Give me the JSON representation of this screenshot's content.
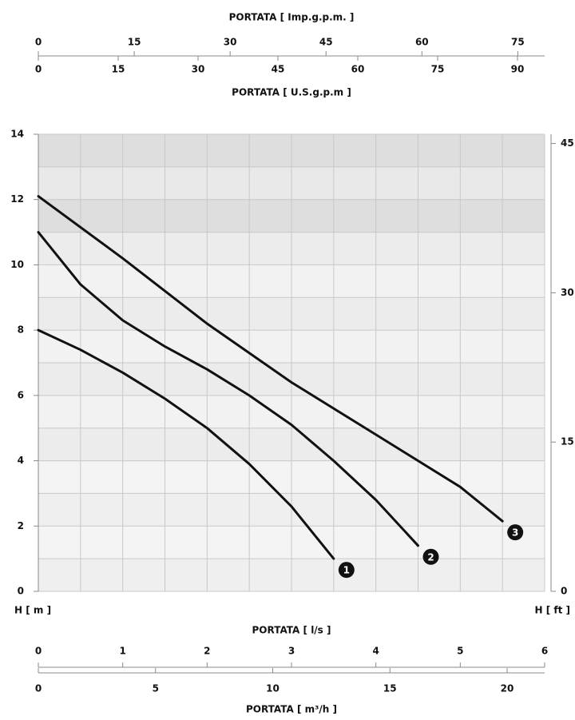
{
  "chart_data": {
    "type": "line",
    "xlabel": "PORTATA [ l/s ]",
    "ylabel": "H [ m ]",
    "y2label": "H [ ft ]",
    "xlim": [
      0,
      6
    ],
    "xticks": [
      0,
      1,
      2,
      3,
      4,
      5,
      6
    ],
    "xminorticks": [
      0.5,
      1.5,
      2.5,
      3.5,
      4.5,
      5.5
    ],
    "ylim": [
      0,
      14
    ],
    "yticks": [
      0,
      2,
      4,
      6,
      8,
      10,
      12,
      14
    ],
    "yminorticks": [
      1,
      3,
      5,
      7,
      9,
      11,
      13
    ],
    "y2lim": [
      0,
      45.93
    ],
    "y2ticks": [
      0,
      15,
      30,
      45
    ],
    "grid": true,
    "extra_x_axes": [
      {
        "label": "PORTATA [ Imp.g.p.m. ]",
        "lim": [
          0,
          79.2
        ],
        "ticks": [
          0,
          15,
          30,
          45,
          60,
          75
        ],
        "position": "top-upper"
      },
      {
        "label": "PORTATA [ U.S.g.p.m ]",
        "lim": [
          0,
          95.1
        ],
        "ticks": [
          0,
          15,
          30,
          45,
          60,
          75,
          90
        ],
        "position": "top-lower"
      },
      {
        "label": "PORTATA [ m³/h ]",
        "lim": [
          0,
          21.6
        ],
        "ticks": [
          0,
          5,
          10,
          15,
          20
        ],
        "position": "bottom"
      }
    ],
    "series": [
      {
        "name": "1",
        "color": "#111111",
        "x": [
          0,
          0.5,
          1.0,
          1.5,
          2.0,
          2.5,
          3.0,
          3.5
        ],
        "values": [
          8,
          7.4,
          6.7,
          5.9,
          5.0,
          3.9,
          2.6,
          1.0
        ]
      },
      {
        "name": "2",
        "color": "#111111",
        "x": [
          0,
          0.5,
          1.0,
          1.5,
          2.0,
          2.5,
          3.0,
          3.5,
          4.0,
          4.5
        ],
        "values": [
          11,
          9.4,
          8.3,
          7.5,
          6.8,
          6.0,
          5.1,
          4.0,
          2.8,
          1.4
        ]
      },
      {
        "name": "3",
        "color": "#111111",
        "x": [
          0,
          1,
          2,
          3,
          4,
          5,
          5.5
        ],
        "values": [
          12.1,
          10.2,
          8.2,
          6.4,
          4.8,
          3.2,
          2.15
        ]
      }
    ]
  }
}
